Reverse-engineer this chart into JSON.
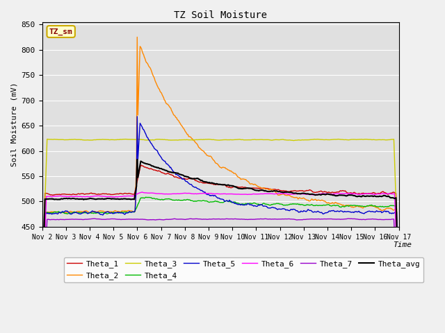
{
  "title": "TZ Soil Moisture",
  "ylabel": "Soil Moisture (mV)",
  "xlabel": "Time",
  "ylim": [
    450,
    855
  ],
  "yticks": [
    450,
    500,
    550,
    600,
    650,
    700,
    750,
    800,
    850
  ],
  "xticklabels": [
    "Nov 2",
    "Nov 3",
    "Nov 4",
    "Nov 5",
    "Nov 6",
    "Nov 7",
    "Nov 8",
    "Nov 9",
    "Nov 10",
    "Nov 11",
    "Nov 12",
    "Nov 13",
    "Nov 14",
    "Nov 15",
    "Nov 16",
    "Nov 17"
  ],
  "series_colors": {
    "Theta_1": "#cc0000",
    "Theta_2": "#ff8800",
    "Theta_3": "#cccc00",
    "Theta_4": "#00bb00",
    "Theta_5": "#0000cc",
    "Theta_6": "#ff00ff",
    "Theta_7": "#9900cc",
    "Theta_avg": "#000000"
  },
  "bg_color": "#e0e0e0",
  "fig_color": "#f0f0f0",
  "legend_box_facecolor": "#ffffcc",
  "legend_box_edgecolor": "#ccaa00",
  "legend_box_textcolor": "#880000",
  "legend_box_label": "TZ_sm",
  "n_points": 500,
  "spike_day": 4.0,
  "n_days": 15
}
